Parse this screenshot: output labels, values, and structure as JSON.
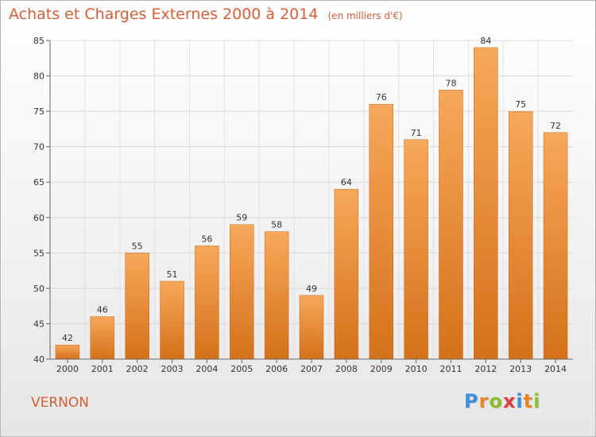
{
  "chart_data": {
    "type": "bar",
    "title": "Achats et Charges Externes 2000 à 2014",
    "subtitle": "(en milliers d'€)",
    "categories": [
      "2000",
      "2001",
      "2002",
      "2003",
      "2004",
      "2005",
      "2006",
      "2007",
      "2008",
      "2009",
      "2010",
      "2011",
      "2012",
      "2013",
      "2014"
    ],
    "values": [
      42,
      46,
      55,
      51,
      56,
      59,
      58,
      49,
      64,
      76,
      71,
      78,
      84,
      75,
      72
    ],
    "ylim": [
      40,
      85
    ],
    "yticks": [
      40,
      45,
      50,
      55,
      60,
      65,
      70,
      75,
      80,
      85
    ],
    "grid": true,
    "bar_color_top": "#f7a85a",
    "bar_color_bottom": "#d4711a"
  },
  "footer": {
    "place": "VERNON",
    "logo_letters": [
      {
        "ch": "P",
        "color": "#3d8fd6"
      },
      {
        "ch": "r",
        "color": "#e8862a"
      },
      {
        "ch": "o",
        "color": "#8bbf2e"
      },
      {
        "ch": "x",
        "color": "#d84040"
      },
      {
        "ch": "i",
        "color": "#3d8fd6"
      },
      {
        "ch": "t",
        "color": "#e8862a"
      },
      {
        "ch": "i",
        "color": "#8bbf2e"
      }
    ]
  }
}
